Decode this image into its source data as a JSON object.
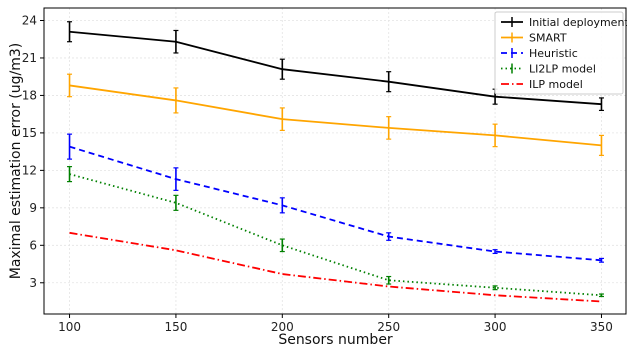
{
  "chart_data": {
    "type": "line",
    "title": "",
    "xlabel": "Sensors number",
    "ylabel": "Maximal estimation error (ug/m3)",
    "x": [
      100,
      150,
      200,
      250,
      300,
      350
    ],
    "x_ticks": [
      "100",
      "150",
      "200",
      "250",
      "300",
      "350"
    ],
    "y_ticks": [
      "3",
      "6",
      "9",
      "12",
      "15",
      "18",
      "21",
      "24"
    ],
    "xlim": [
      88,
      362
    ],
    "ylim": [
      0.5,
      25
    ],
    "grid": true,
    "legend_position": "top-right",
    "series": [
      {
        "name": "Initial deployment",
        "color": "#000000",
        "dash": "solid",
        "error_bars": true,
        "values": [
          23.1,
          22.3,
          20.1,
          19.1,
          17.9,
          17.3
        ],
        "errors": [
          0.8,
          0.9,
          0.8,
          0.8,
          0.6,
          0.5
        ]
      },
      {
        "name": "SMART",
        "color": "#ffa500",
        "dash": "solid",
        "error_bars": true,
        "values": [
          18.8,
          17.6,
          16.1,
          15.4,
          14.8,
          14.0
        ],
        "errors": [
          0.9,
          1.0,
          0.9,
          0.9,
          0.9,
          0.8
        ]
      },
      {
        "name": "Heuristic",
        "color": "#0000ff",
        "dash": "dashed",
        "error_bars": true,
        "values": [
          13.9,
          11.3,
          9.2,
          6.7,
          5.5,
          4.8
        ],
        "errors": [
          1.0,
          0.9,
          0.6,
          0.3,
          0.15,
          0.15
        ]
      },
      {
        "name": "LI2LP model",
        "color": "#008000",
        "dash": "dotted",
        "error_bars": true,
        "values": [
          11.7,
          9.4,
          6.0,
          3.2,
          2.6,
          2.0
        ],
        "errors": [
          0.6,
          0.6,
          0.5,
          0.3,
          0.15,
          0.1
        ]
      },
      {
        "name": "ILP model",
        "color": "#ff0000",
        "dash": "dashdot",
        "error_bars": false,
        "values": [
          7.0,
          5.6,
          3.7,
          2.7,
          2.0,
          1.5
        ],
        "errors": [
          0,
          0,
          0,
          0,
          0,
          0
        ]
      }
    ]
  }
}
